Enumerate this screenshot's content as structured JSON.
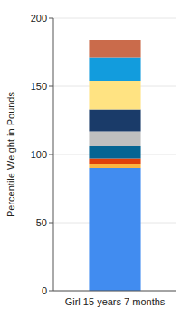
{
  "chart_data": {
    "type": "bar",
    "stacked": true,
    "grid": true,
    "y_label": "Percentile Weight in Pounds",
    "categories": [
      "Girl 15 years 7 months"
    ],
    "series": [
      {
        "color": "#418CF0",
        "values": [
          90
        ]
      },
      {
        "color": "#FCB441",
        "values": [
          3
        ]
      },
      {
        "color": "#E0400A",
        "values": [
          4
        ]
      },
      {
        "color": "#056492",
        "values": [
          9
        ]
      },
      {
        "color": "#BFBFBF",
        "values": [
          11
        ]
      },
      {
        "color": "#1A3B69",
        "values": [
          16
        ]
      },
      {
        "color": "#FFE382",
        "values": [
          21
        ]
      },
      {
        "color": "#129CDD",
        "values": [
          17
        ]
      },
      {
        "color": "#CA6B4B",
        "values": [
          13
        ]
      }
    ],
    "ylim": [
      0,
      200
    ],
    "yticks": [
      0,
      50,
      100,
      150,
      200
    ]
  }
}
